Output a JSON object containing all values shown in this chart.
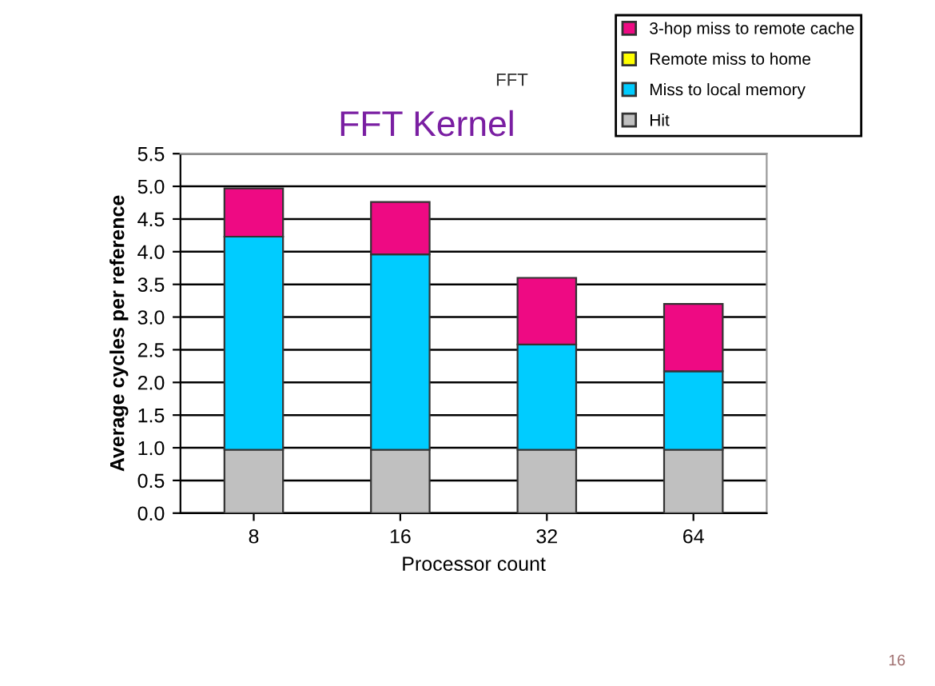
{
  "chart_data": {
    "type": "bar",
    "title": "FFT Kernel",
    "xlabel": "Processor count",
    "ylabel": "Average cycles per reference",
    "categories": [
      "8",
      "16",
      "32",
      "64"
    ],
    "series": [
      {
        "name": "Hit",
        "color": "#c0c0c0",
        "values": [
          0.97,
          0.97,
          0.97,
          0.97
        ]
      },
      {
        "name": "Miss to local memory",
        "color": "#00ccff",
        "values": [
          3.26,
          2.99,
          1.61,
          1.2
        ]
      },
      {
        "name": "Remote miss to home",
        "color": "#ffff00",
        "values": [
          0,
          0,
          0,
          0
        ]
      },
      {
        "name": "3-hop miss to remote cache",
        "color": "#ee0a83",
        "values": [
          0.74,
          0.8,
          1.02,
          1.03
        ]
      }
    ],
    "stacked": true,
    "ylim": [
      0,
      5.5
    ],
    "yticks": [
      {
        "value": 0,
        "label": "0.0"
      },
      0.5,
      {
        "value": 1,
        "label": "1.0"
      },
      1.5,
      {
        "value": 2,
        "label": "2.0"
      },
      2.5,
      {
        "value": 3,
        "label": "3.0"
      },
      3.5,
      {
        "value": 4,
        "label": "4.0"
      },
      4.5,
      {
        "value": 5,
        "label": "5.0"
      },
      5.5
    ],
    "grid": "y",
    "legend": "top right",
    "annotations": [
      "FFT",
      "16"
    ]
  }
}
